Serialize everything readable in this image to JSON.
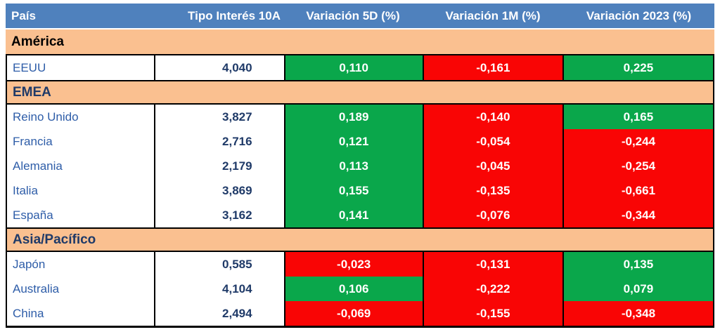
{
  "colors": {
    "header_blue": "#4F81BD",
    "section_orange": "#FAC090",
    "positive_green": "#0AA74B",
    "negative_red": "#F90505",
    "country_blue": "#2E5DA8",
    "value_navy": "#1F3A68",
    "border_black": "#000000",
    "header_text": "#FFFFFF",
    "america_label": "#000000"
  },
  "table": {
    "columns": [
      "País",
      "Tipo Interés 10A",
      "Variación 5D (%)",
      "Variación 1M (%)",
      "Variación 2023 (%)"
    ],
    "sections": [
      {
        "name": "América",
        "name_color": "#000000",
        "rows": [
          {
            "country": "EEUU",
            "rate": "4,040",
            "changes": [
              {
                "value": "0,110",
                "color": "positive_green"
              },
              {
                "value": "-0,161",
                "color": "negative_red"
              },
              {
                "value": "0,225",
                "color": "positive_green"
              }
            ]
          }
        ]
      },
      {
        "name": "EMEA",
        "name_color": "#1F3A68",
        "rows": [
          {
            "country": "Reino Unido",
            "rate": "3,827",
            "changes": [
              {
                "value": "0,189",
                "color": "positive_green"
              },
              {
                "value": "-0,140",
                "color": "negative_red"
              },
              {
                "value": "0,165",
                "color": "positive_green"
              }
            ]
          },
          {
            "country": "Francia",
            "rate": "2,716",
            "changes": [
              {
                "value": "0,121",
                "color": "positive_green"
              },
              {
                "value": "-0,054",
                "color": "negative_red"
              },
              {
                "value": "-0,244",
                "color": "negative_red"
              }
            ]
          },
          {
            "country": "Alemania",
            "rate": "2,179",
            "changes": [
              {
                "value": "0,113",
                "color": "positive_green"
              },
              {
                "value": "-0,045",
                "color": "negative_red"
              },
              {
                "value": "-0,254",
                "color": "negative_red"
              }
            ]
          },
          {
            "country": "Italia",
            "rate": "3,869",
            "changes": [
              {
                "value": "0,155",
                "color": "positive_green"
              },
              {
                "value": "-0,135",
                "color": "negative_red"
              },
              {
                "value": "-0,661",
                "color": "negative_red"
              }
            ]
          },
          {
            "country": "España",
            "rate": "3,162",
            "changes": [
              {
                "value": "0,141",
                "color": "positive_green"
              },
              {
                "value": "-0,076",
                "color": "negative_red"
              },
              {
                "value": "-0,344",
                "color": "negative_red"
              }
            ]
          }
        ]
      },
      {
        "name": "Asia/Pacífico",
        "name_color": "#1F3A68",
        "rows": [
          {
            "country": "Japón",
            "rate": "0,585",
            "changes": [
              {
                "value": "-0,023",
                "color": "negative_red"
              },
              {
                "value": "-0,131",
                "color": "negative_red"
              },
              {
                "value": "0,135",
                "color": "positive_green"
              }
            ]
          },
          {
            "country": "Australia",
            "rate": "4,104",
            "changes": [
              {
                "value": "0,106",
                "color": "positive_green"
              },
              {
                "value": "-0,222",
                "color": "negative_red"
              },
              {
                "value": "0,079",
                "color": "positive_green"
              }
            ]
          },
          {
            "country": "China",
            "rate": "2,494",
            "changes": [
              {
                "value": "-0,069",
                "color": "negative_red"
              },
              {
                "value": "-0,155",
                "color": "negative_red"
              },
              {
                "value": "-0,348",
                "color": "negative_red"
              }
            ]
          }
        ]
      }
    ]
  },
  "chart_data": {
    "type": "table",
    "columns": [
      "País",
      "Tipo Interés 10A",
      "Variación 5D (%)",
      "Variación 1M (%)",
      "Variación 2023 (%)"
    ],
    "rows": [
      {
        "section": "América",
        "country": "EEUU",
        "tipo_interes_10a": 4.04,
        "variacion_5d_pct": 0.11,
        "variacion_1m_pct": -0.161,
        "variacion_2023_pct": 0.225
      },
      {
        "section": "EMEA",
        "country": "Reino Unido",
        "tipo_interes_10a": 3.827,
        "variacion_5d_pct": 0.189,
        "variacion_1m_pct": -0.14,
        "variacion_2023_pct": 0.165
      },
      {
        "section": "EMEA",
        "country": "Francia",
        "tipo_interes_10a": 2.716,
        "variacion_5d_pct": 0.121,
        "variacion_1m_pct": -0.054,
        "variacion_2023_pct": -0.244
      },
      {
        "section": "EMEA",
        "country": "Alemania",
        "tipo_interes_10a": 2.179,
        "variacion_5d_pct": 0.113,
        "variacion_1m_pct": -0.045,
        "variacion_2023_pct": -0.254
      },
      {
        "section": "EMEA",
        "country": "Italia",
        "tipo_interes_10a": 3.869,
        "variacion_5d_pct": 0.155,
        "variacion_1m_pct": -0.135,
        "variacion_2023_pct": -0.661
      },
      {
        "section": "EMEA",
        "country": "España",
        "tipo_interes_10a": 3.162,
        "variacion_5d_pct": 0.141,
        "variacion_1m_pct": -0.076,
        "variacion_2023_pct": -0.344
      },
      {
        "section": "Asia/Pacífico",
        "country": "Japón",
        "tipo_interes_10a": 0.585,
        "variacion_5d_pct": -0.023,
        "variacion_1m_pct": -0.131,
        "variacion_2023_pct": 0.135
      },
      {
        "section": "Asia/Pacífico",
        "country": "Australia",
        "tipo_interes_10a": 4.104,
        "variacion_5d_pct": 0.106,
        "variacion_1m_pct": -0.222,
        "variacion_2023_pct": 0.079
      },
      {
        "section": "Asia/Pacífico",
        "country": "China",
        "tipo_interes_10a": 2.494,
        "variacion_5d_pct": -0.069,
        "variacion_1m_pct": -0.155,
        "variacion_2023_pct": -0.348
      }
    ],
    "legend": "green = positive variation, red = negative variation",
    "grid": "black block borders around data groups, orange section bands"
  }
}
